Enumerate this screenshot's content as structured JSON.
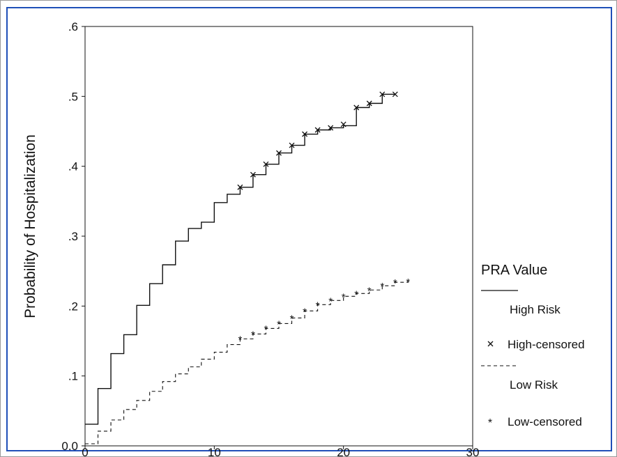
{
  "chart_data": {
    "type": "line",
    "title": "",
    "xlabel": "",
    "ylabel": "Probability of Hospitalization",
    "xlim": [
      0,
      30
    ],
    "ylim": [
      0,
      0.6
    ],
    "x_ticks": [
      0,
      10,
      20,
      30
    ],
    "x_tick_labels": [
      "0",
      "10",
      "20",
      "30"
    ],
    "y_ticks": [
      0,
      0.1,
      0.2,
      0.3,
      0.4,
      0.5,
      0.6
    ],
    "y_tick_labels": [
      "0.0",
      ".1",
      ".2",
      ".3",
      ".4",
      ".5",
      ".6"
    ],
    "grid": false,
    "legend": {
      "title": "PRA Value",
      "position": "right",
      "entries": [
        "High Risk",
        "High-censored",
        "Low Risk",
        "Low-censored"
      ]
    },
    "series": [
      {
        "name": "High Risk",
        "style": "solid step",
        "color": "#111111",
        "steps": [
          [
            0,
            0.031
          ],
          [
            1,
            0.082
          ],
          [
            2,
            0.132
          ],
          [
            3,
            0.159
          ],
          [
            4,
            0.201
          ],
          [
            5,
            0.232
          ],
          [
            6,
            0.259
          ],
          [
            7,
            0.293
          ],
          [
            8,
            0.311
          ],
          [
            9,
            0.32
          ],
          [
            10,
            0.348
          ],
          [
            11,
            0.36
          ],
          [
            12,
            0.37
          ],
          [
            13,
            0.388
          ],
          [
            14,
            0.403
          ],
          [
            15,
            0.419
          ],
          [
            16,
            0.43
          ],
          [
            17,
            0.446
          ],
          [
            18,
            0.452
          ],
          [
            19,
            0.455
          ],
          [
            20,
            0.458
          ],
          [
            21,
            0.484
          ],
          [
            22,
            0.49
          ],
          [
            23,
            0.503
          ],
          [
            24,
            0.503
          ]
        ],
        "censored_marker": "x",
        "censored_points": [
          [
            12,
            0.37
          ],
          [
            13,
            0.388
          ],
          [
            14,
            0.403
          ],
          [
            15,
            0.419
          ],
          [
            16,
            0.43
          ],
          [
            17,
            0.446
          ],
          [
            18,
            0.452
          ],
          [
            19,
            0.455
          ],
          [
            20,
            0.46
          ],
          [
            21,
            0.484
          ],
          [
            22,
            0.49
          ],
          [
            23,
            0.503
          ],
          [
            24,
            0.503
          ]
        ]
      },
      {
        "name": "Low Risk",
        "style": "dashed step",
        "color": "#111111",
        "steps": [
          [
            0,
            0.003
          ],
          [
            1,
            0.021
          ],
          [
            2,
            0.037
          ],
          [
            3,
            0.052
          ],
          [
            4,
            0.065
          ],
          [
            5,
            0.078
          ],
          [
            6,
            0.092
          ],
          [
            7,
            0.103
          ],
          [
            8,
            0.113
          ],
          [
            9,
            0.124
          ],
          [
            10,
            0.134
          ],
          [
            11,
            0.145
          ],
          [
            12,
            0.153
          ],
          [
            13,
            0.16
          ],
          [
            14,
            0.168
          ],
          [
            15,
            0.175
          ],
          [
            16,
            0.183
          ],
          [
            17,
            0.193
          ],
          [
            18,
            0.202
          ],
          [
            19,
            0.208
          ],
          [
            20,
            0.214
          ],
          [
            21,
            0.218
          ],
          [
            22,
            0.223
          ],
          [
            23,
            0.229
          ],
          [
            24,
            0.234
          ],
          [
            25,
            0.235
          ]
        ],
        "censored_marker": "*",
        "censored_points": [
          [
            12,
            0.153
          ],
          [
            13,
            0.16
          ],
          [
            14,
            0.168
          ],
          [
            15,
            0.175
          ],
          [
            16,
            0.183
          ],
          [
            17,
            0.193
          ],
          [
            18,
            0.202
          ],
          [
            19,
            0.208
          ],
          [
            20,
            0.214
          ],
          [
            21,
            0.218
          ],
          [
            22,
            0.223
          ],
          [
            23,
            0.229
          ],
          [
            24,
            0.234
          ],
          [
            25,
            0.235
          ]
        ]
      }
    ]
  }
}
